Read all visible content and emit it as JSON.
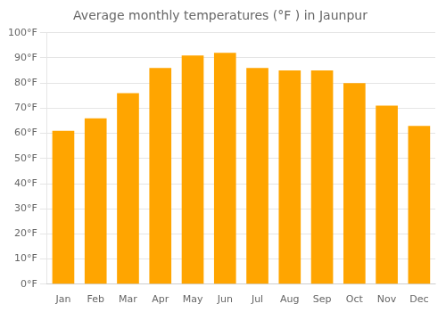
{
  "chart_data": {
    "type": "bar",
    "title": "Average monthly temperatures (°F ) in Jaunpur",
    "categories": [
      "Jan",
      "Feb",
      "Mar",
      "Apr",
      "May",
      "Jun",
      "Jul",
      "Aug",
      "Sep",
      "Oct",
      "Nov",
      "Dec"
    ],
    "values": [
      61,
      66,
      76,
      86,
      91,
      92,
      86,
      85,
      85,
      80,
      71,
      63
    ],
    "color": "#FFA500",
    "ylim": [
      0,
      100
    ],
    "yticks": [
      {
        "value": 0,
        "label": "0°F"
      },
      {
        "value": 10,
        "label": "10°F"
      },
      {
        "value": 20,
        "label": "20°F"
      },
      {
        "value": 30,
        "label": "30°F"
      },
      {
        "value": 40,
        "label": "40°F"
      },
      {
        "value": 50,
        "label": "50°F"
      },
      {
        "value": 60,
        "label": "60°F"
      },
      {
        "value": 70,
        "label": "70°F"
      },
      {
        "value": 80,
        "label": "80°F"
      },
      {
        "value": 90,
        "label": "90°F"
      },
      {
        "value": 100,
        "label": "100°F"
      }
    ],
    "grid": true
  }
}
